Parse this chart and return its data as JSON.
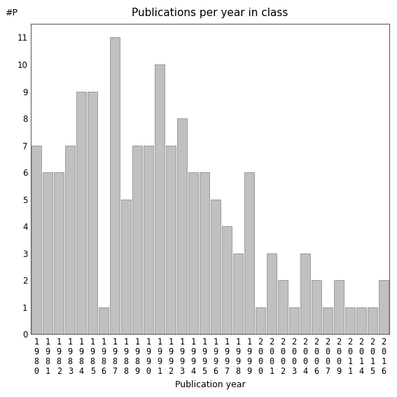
{
  "title": "Publications per year in class",
  "xlabel": "Publication year",
  "ylabel": "#P",
  "bar_color": "#c0c0c0",
  "edge_color": "#808080",
  "categories": [
    "1980",
    "1981",
    "1982",
    "1983",
    "1984",
    "1985",
    "1986",
    "1987",
    "1988",
    "1989",
    "1990",
    "1991",
    "1992",
    "1993",
    "1994",
    "1995",
    "1996",
    "1997",
    "1998",
    "1999",
    "2000",
    "2001",
    "2002",
    "2003",
    "2004",
    "2006",
    "2007",
    "2009",
    "2011",
    "2014",
    "2015",
    "2016"
  ],
  "values": [
    7,
    6,
    6,
    7,
    9,
    9,
    1,
    11,
    5,
    7,
    7,
    10,
    7,
    8,
    6,
    6,
    5,
    4,
    3,
    6,
    1,
    3,
    2,
    1,
    3,
    2,
    1,
    2,
    1,
    1,
    1,
    2
  ],
  "ylim": [
    0,
    11.5
  ],
  "yticks": [
    0,
    1,
    2,
    3,
    4,
    5,
    6,
    7,
    8,
    9,
    10,
    11
  ],
  "background_color": "#ffffff",
  "title_fontsize": 11,
  "label_fontsize": 9,
  "tick_fontsize": 8.5
}
